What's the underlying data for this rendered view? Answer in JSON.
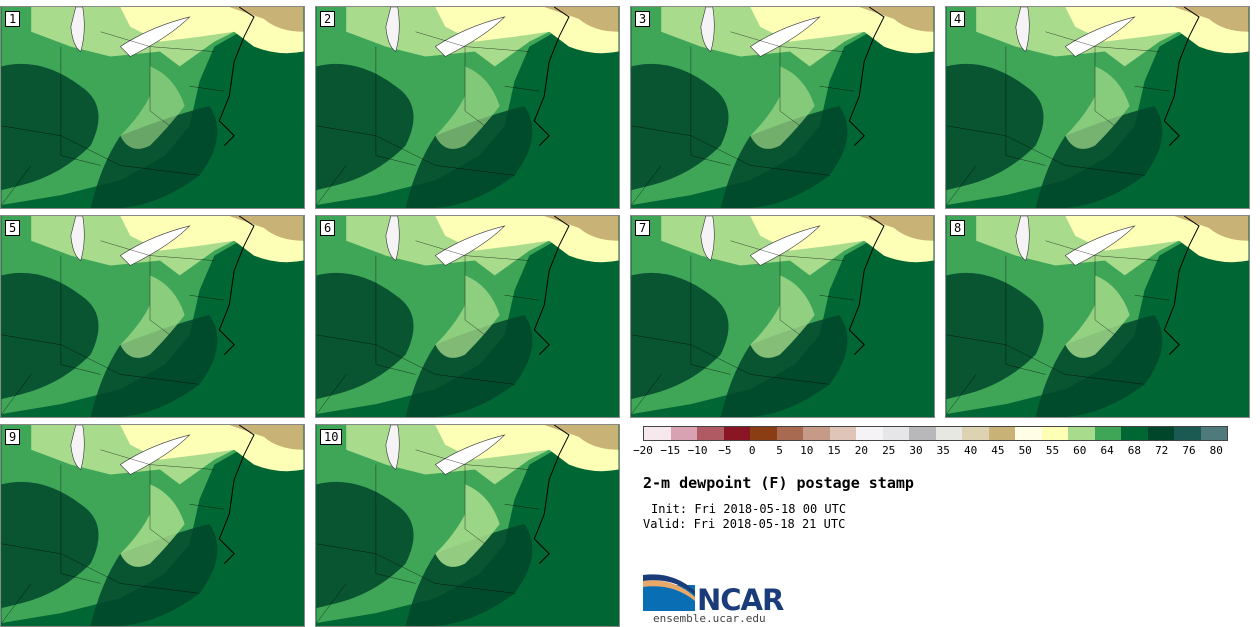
{
  "panels": [
    "1",
    "2",
    "3",
    "4",
    "5",
    "6",
    "7",
    "8",
    "9",
    "10"
  ],
  "colorbar": {
    "colors": [
      "#f7e8ee",
      "#d9a2b2",
      "#b05a64",
      "#8a1524",
      "#8a3d12",
      "#a86b52",
      "#c59b88",
      "#dec5b8",
      "#f5f3f5",
      "#e6e6e8",
      "#b8b8ba",
      "#e8e8e2",
      "#ddd3b2",
      "#c8b275",
      "#fffde6",
      "#fdffb6",
      "#a8dc8c",
      "#3fa658",
      "#006633",
      "#00462a",
      "#1a5a52",
      "#4f7a7c"
    ],
    "ticks": [
      "−20",
      "−15",
      "−10",
      "−5",
      "0",
      "5",
      "10",
      "15",
      "20",
      "25",
      "30",
      "35",
      "40",
      "45",
      "50",
      "55",
      "60",
      "64",
      "68",
      "72",
      "76",
      "80"
    ]
  },
  "title": "2-m dewpoint (F) postage stamp",
  "init": "Init: Fri 2018-05-18 00 UTC",
  "valid": "Valid: Fri 2018-05-18 21 UTC",
  "logo": {
    "name": "NCAR",
    "url": "ensemble.ucar.edu"
  },
  "map_colors": {
    "ocean": "#006633",
    "dark": "#00462a",
    "mid": "#3fa658",
    "light": "#a8dc8c",
    "pale": "#fdffb6",
    "tan": "#c8b275",
    "lake": "#f5f3f5"
  }
}
